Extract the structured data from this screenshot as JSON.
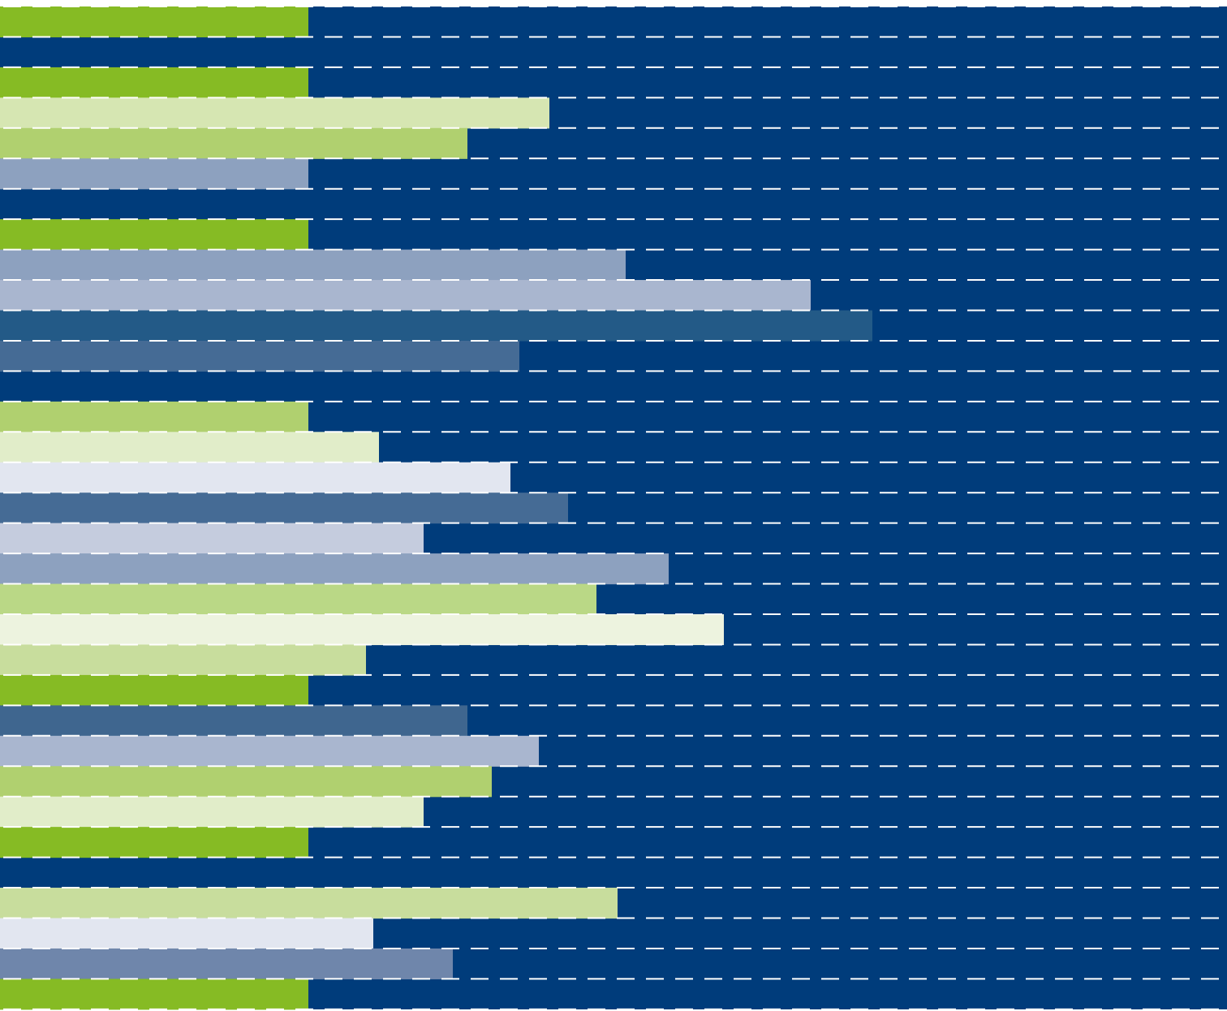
{
  "theme": {
    "background": "#ffffff",
    "panel": "#003c7b",
    "dash_color": "#ffffff"
  },
  "graphic": {
    "description_visible_text": "",
    "bar_extent_scale_max": 1.0,
    "bars": [
      {
        "color": "#86bb24",
        "extent": 0.251
      },
      {
        "color": "#003c7b",
        "extent": 0.0
      },
      {
        "color": "#86bb24",
        "extent": 0.251
      },
      {
        "color": "#d6e6b2",
        "extent": 0.448
      },
      {
        "color": "#b0d06f",
        "extent": 0.381
      },
      {
        "color": "#8da1bf",
        "extent": 0.251
      },
      {
        "color": "#003c7b",
        "extent": 0.0
      },
      {
        "color": "#86bb24",
        "extent": 0.251
      },
      {
        "color": "#8da1bf",
        "extent": 0.51
      },
      {
        "color": "#a9b6cf",
        "extent": 0.661
      },
      {
        "color": "#235a87",
        "extent": 0.711
      },
      {
        "color": "#456b95",
        "extent": 0.423
      },
      {
        "color": "#003c7b",
        "extent": 0.0
      },
      {
        "color": "#b0d06f",
        "extent": 0.251
      },
      {
        "color": "#e1edc9",
        "extent": 0.309
      },
      {
        "color": "#e2e6f0",
        "extent": 0.416
      },
      {
        "color": "#456b95",
        "extent": 0.463
      },
      {
        "color": "#c5ccde",
        "extent": 0.345
      },
      {
        "color": "#8da1bf",
        "extent": 0.545
      },
      {
        "color": "#bad886",
        "extent": 0.486
      },
      {
        "color": "#edf3df",
        "extent": 0.59
      },
      {
        "color": "#c8dd9d",
        "extent": 0.298
      },
      {
        "color": "#86bb24",
        "extent": 0.251
      },
      {
        "color": "#3f668f",
        "extent": 0.381
      },
      {
        "color": "#a9b6cf",
        "extent": 0.439
      },
      {
        "color": "#b0d06f",
        "extent": 0.401
      },
      {
        "color": "#e1edc9",
        "extent": 0.345
      },
      {
        "color": "#86bb24",
        "extent": 0.251
      },
      {
        "color": "#003c7b",
        "extent": 0.0
      },
      {
        "color": "#c8dd9d",
        "extent": 0.503
      },
      {
        "color": "#e2e6f0",
        "extent": 0.304
      },
      {
        "color": "#6f86ab",
        "extent": 0.369
      },
      {
        "color": "#86bb24",
        "extent": 0.251
      }
    ]
  }
}
